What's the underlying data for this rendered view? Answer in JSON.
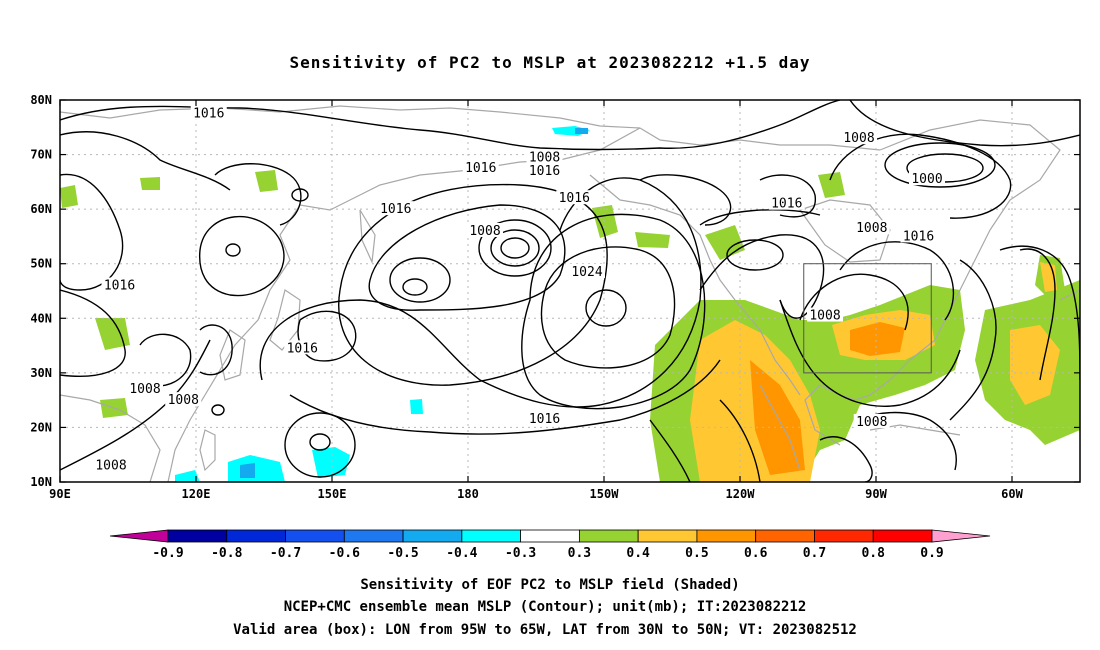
{
  "title": "Sensitivity of PC2 to MSLP at 2023082212 +1.5 day",
  "axes": {
    "x_ticks": [
      "90E",
      "120E",
      "150E",
      "180",
      "150W",
      "120W",
      "90W",
      "60W"
    ],
    "y_ticks": [
      "10N",
      "20N",
      "30N",
      "40N",
      "50N",
      "60N",
      "70N",
      "80N"
    ]
  },
  "contour_labels": [
    {
      "text": "1016",
      "lon": 125,
      "lat": 77.5
    },
    {
      "text": "1016",
      "lon": 189,
      "lat": 67.5
    },
    {
      "text": "1008",
      "lon": 204,
      "lat": 69.5
    },
    {
      "text": "1016",
      "lon": 204,
      "lat": 67
    },
    {
      "text": "1016",
      "lon": 169,
      "lat": 60
    },
    {
      "text": "1016",
      "lon": 104,
      "lat": 46
    },
    {
      "text": "1008",
      "lon": 190,
      "lat": 56
    },
    {
      "text": "1016",
      "lon": 211,
      "lat": 62
    },
    {
      "text": "1024",
      "lon": 214,
      "lat": 48.5
    },
    {
      "text": "1016",
      "lon": 147,
      "lat": 34.5
    },
    {
      "text": "1008",
      "lon": 110,
      "lat": 27
    },
    {
      "text": "1008",
      "lon": 119,
      "lat": 25
    },
    {
      "text": "1016",
      "lon": 204,
      "lat": 21.5
    },
    {
      "text": "1008",
      "lon": 102,
      "lat": 13
    },
    {
      "text": "1008",
      "lon": 270,
      "lat": 40.5
    },
    {
      "text": "1008",
      "lon": 278,
      "lat": 73
    },
    {
      "text": "1016",
      "lon": 261,
      "lat": 61
    },
    {
      "text": "1000",
      "lon": 294,
      "lat": 65.5
    },
    {
      "text": "1008",
      "lon": 281,
      "lat": 56.5
    },
    {
      "text": "1016",
      "lon": 292,
      "lat": 55
    },
    {
      "text": "1008",
      "lon": 281,
      "lat": 21
    }
  ],
  "valid_box": {
    "lon_min": 265,
    "lon_max": 295,
    "lat_min": 30,
    "lat_max": 50
  },
  "colorbar": {
    "ticks": [
      "-0.9",
      "-0.8",
      "-0.7",
      "-0.6",
      "-0.5",
      "-0.4",
      "-0.3",
      "0.3",
      "0.4",
      "0.5",
      "0.6",
      "0.7",
      "0.8",
      "0.9"
    ],
    "colors": [
      "#0000a0",
      "#0028d8",
      "#1450f0",
      "#1e78f0",
      "#14aaf0",
      "#00ffff",
      "#ffffff",
      "#96d232",
      "#ffc832",
      "#ff9600",
      "#ff6400",
      "#ff2800",
      "#ff0000"
    ],
    "low_arrow_color": "#c00098",
    "high_arrow_color": "#ffa0d0"
  },
  "captions": [
    "Sensitivity of EOF PC2 to MSLP field (Shaded)",
    "NCEP+CMC ensemble mean MSLP (Contour); unit(mb); IT:2023082212",
    "Valid area (box): LON from 95W to 65W, LAT from 30N to 50N; VT: 2023082512"
  ]
}
